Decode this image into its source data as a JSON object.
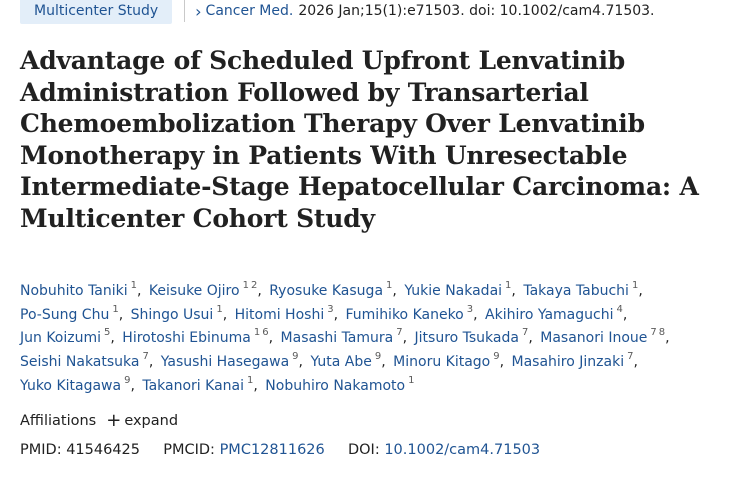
{
  "header": {
    "badge": "Multicenter Study",
    "journal": "Cancer Med.",
    "citation": "2026 Jan;15(1):e71503. doi: 10.1002/cam4.71503."
  },
  "title": "Advantage of Scheduled Upfront Lenvatinib Administration Followed by Transarterial Chemoembolization Therapy Over Lenvatinib Monotherapy in Patients With Unresectable Intermediate-Stage Hepatocellular Carcinoma: A Multicenter Cohort Study",
  "authors": [
    {
      "name": "Nobuhito Taniki",
      "aff": [
        "1"
      ]
    },
    {
      "name": "Keisuke Ojiro",
      "aff": [
        "1",
        "2"
      ]
    },
    {
      "name": "Ryosuke Kasuga",
      "aff": [
        "1"
      ]
    },
    {
      "name": "Yukie Nakadai",
      "aff": [
        "1"
      ]
    },
    {
      "name": "Takaya Tabuchi",
      "aff": [
        "1"
      ]
    },
    {
      "name": "Po-Sung Chu",
      "aff": [
        "1"
      ]
    },
    {
      "name": "Shingo Usui",
      "aff": [
        "1"
      ]
    },
    {
      "name": "Hitomi Hoshi",
      "aff": [
        "3"
      ]
    },
    {
      "name": "Fumihiko Kaneko",
      "aff": [
        "3"
      ]
    },
    {
      "name": "Akihiro Yamaguchi",
      "aff": [
        "4"
      ]
    },
    {
      "name": "Jun Koizumi",
      "aff": [
        "5"
      ]
    },
    {
      "name": "Hirotoshi Ebinuma",
      "aff": [
        "1",
        "6"
      ]
    },
    {
      "name": "Masashi Tamura",
      "aff": [
        "7"
      ]
    },
    {
      "name": "Jitsuro Tsukada",
      "aff": [
        "7"
      ]
    },
    {
      "name": "Masanori Inoue",
      "aff": [
        "7",
        "8"
      ]
    },
    {
      "name": "Seishi Nakatsuka",
      "aff": [
        "7"
      ]
    },
    {
      "name": "Yasushi Hasegawa",
      "aff": [
        "9"
      ]
    },
    {
      "name": "Yuta Abe",
      "aff": [
        "9"
      ]
    },
    {
      "name": "Minoru Kitago",
      "aff": [
        "9"
      ]
    },
    {
      "name": "Masahiro Jinzaki",
      "aff": [
        "7"
      ]
    },
    {
      "name": "Yuko Kitagawa",
      "aff": [
        "9"
      ]
    },
    {
      "name": "Takanori Kanai",
      "aff": [
        "1"
      ]
    },
    {
      "name": "Nobuhiro Nakamoto",
      "aff": [
        "1"
      ]
    }
  ],
  "affiliations": {
    "label": "Affiliations",
    "expand_icon": "plus-icon",
    "expand_label": "expand"
  },
  "ids": {
    "pmid_label": "PMID:",
    "pmid": "41546425",
    "pmcid_label": "PMCID:",
    "pmcid": "PMC12811626",
    "doi_label": "DOI:",
    "doi": "10.1002/cam4.71503"
  },
  "colors": {
    "link": "#205493",
    "badge_bg": "#e3eef9",
    "text": "#212121"
  }
}
